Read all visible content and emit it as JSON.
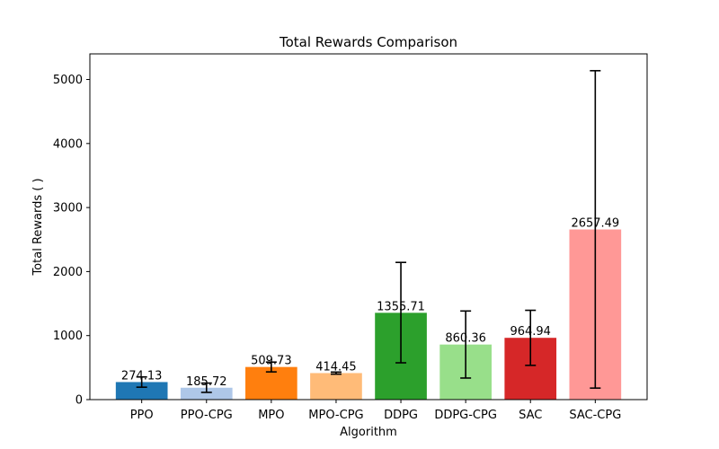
{
  "chart_data": {
    "type": "bar",
    "title": "Total Rewards Comparison",
    "xlabel": "Algorithm",
    "ylabel": "Total Rewards ( )",
    "ylim": [
      0,
      5400
    ],
    "yticks": [
      0,
      1000,
      2000,
      3000,
      4000,
      5000
    ],
    "ytick_labels": [
      "0",
      "1000",
      "2000",
      "3000",
      "4000",
      "5000"
    ],
    "grid": false,
    "categories": [
      "PPO",
      "PPO-CPG",
      "MPO",
      "MPO-CPG",
      "DDPG",
      "DDPG-CPG",
      "SAC",
      "SAC-CPG"
    ],
    "values": [
      274.13,
      185.72,
      509.73,
      414.45,
      1355.71,
      860.36,
      964.94,
      2657.49
    ],
    "value_labels": [
      "274.13",
      "185.72",
      "509.73",
      "414.45",
      "1355.71",
      "860.36",
      "964.94",
      "2657.49"
    ],
    "error_low": [
      194,
      113,
      433,
      398,
      575,
      337,
      535,
      180
    ],
    "error_high": [
      354,
      258,
      586,
      430,
      2143,
      1384,
      1395,
      5137
    ],
    "colors": [
      "#1f77b4",
      "#aec7e8",
      "#ff7f0e",
      "#ffbb78",
      "#2ca02c",
      "#98df8a",
      "#d62728",
      "#ff9896"
    ]
  }
}
